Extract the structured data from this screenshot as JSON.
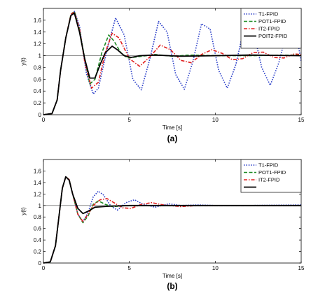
{
  "figure": {
    "captions": [
      "(a)",
      "(b)"
    ]
  },
  "chart_data": [
    {
      "type": "line",
      "caption": "(a)",
      "xlabel": "Time [s]",
      "ylabel": "y(t)",
      "xlim": [
        0,
        15
      ],
      "ylim": [
        0,
        1.8
      ],
      "xticks": [
        "0",
        "5",
        "10",
        "15"
      ],
      "yticks": [
        "0",
        "0.2",
        "0.4",
        "0.6",
        "0.8",
        "1",
        "1.2",
        "1.4",
        "1.6"
      ],
      "reference": 1,
      "grid": false,
      "legend_position": "top-right",
      "series": [
        {
          "name": "T1-FPID",
          "color": "#2b3fc9",
          "dash": "dotted",
          "width": 1.6,
          "x": [
            0,
            0.5,
            0.8,
            1.0,
            1.3,
            1.6,
            1.8,
            2.1,
            2.5,
            2.9,
            3.2,
            3.7,
            4.2,
            4.7,
            5.2,
            5.7,
            6.2,
            6.7,
            7.2,
            7.7,
            8.2,
            8.7,
            9.2,
            9.7,
            10.2,
            10.7,
            11.2,
            11.7,
            12.2,
            12.7,
            13.2,
            13.7,
            14.2,
            14.7,
            15
          ],
          "y": [
            0,
            0.02,
            0.25,
            0.75,
            1.3,
            1.68,
            1.75,
            1.5,
            0.7,
            0.35,
            0.45,
            1.1,
            1.64,
            1.35,
            0.6,
            0.42,
            0.95,
            1.58,
            1.4,
            0.68,
            0.43,
            0.9,
            1.54,
            1.45,
            0.75,
            0.45,
            0.85,
            1.5,
            1.45,
            0.8,
            0.5,
            0.88,
            1.45,
            1.4,
            0.9
          ]
        },
        {
          "name": "POT1-FPID",
          "color": "#1e8a25",
          "dash": "dashed",
          "width": 1.6,
          "x": [
            0,
            0.5,
            0.8,
            1.0,
            1.3,
            1.6,
            1.8,
            2.1,
            2.4,
            2.7,
            3.0,
            3.4,
            3.8,
            4.1,
            4.5,
            4.9,
            5.5,
            6.5,
            7.5,
            8.5,
            10,
            12,
            15
          ],
          "y": [
            0,
            0.02,
            0.25,
            0.75,
            1.3,
            1.7,
            1.75,
            1.45,
            0.95,
            0.52,
            0.6,
            1.05,
            1.35,
            1.25,
            1.05,
            0.96,
            0.98,
            1.02,
            0.99,
            1.01,
            1.0,
            1.0,
            1.01
          ]
        },
        {
          "name": "IT2-FPID",
          "color": "#e02020",
          "dash": "dashdot",
          "width": 1.6,
          "x": [
            0,
            0.5,
            0.8,
            1.0,
            1.3,
            1.6,
            1.8,
            2.1,
            2.4,
            2.8,
            3.2,
            3.6,
            4.0,
            4.4,
            5.0,
            5.6,
            6.2,
            6.8,
            7.4,
            8.0,
            8.6,
            9.2,
            9.8,
            10.4,
            11.0,
            11.6,
            12.2,
            12.8,
            13.4,
            14.0,
            14.6,
            15
          ],
          "y": [
            0,
            0.02,
            0.25,
            0.75,
            1.3,
            1.7,
            1.74,
            1.45,
            0.9,
            0.45,
            0.55,
            1.05,
            1.38,
            1.3,
            0.95,
            0.82,
            0.98,
            1.18,
            1.1,
            0.92,
            0.88,
            1.02,
            1.1,
            1.04,
            0.93,
            0.95,
            1.05,
            1.06,
            0.97,
            0.96,
            1.03,
            1.02
          ]
        },
        {
          "name": "POIT2-FPID",
          "color": "#000000",
          "dash": "solid",
          "width": 1.8,
          "x": [
            0,
            0.5,
            0.8,
            1.0,
            1.3,
            1.6,
            1.8,
            2.1,
            2.4,
            2.7,
            3.0,
            3.3,
            3.6,
            4.0,
            4.3,
            4.7,
            5.1,
            5.6,
            6.5,
            8,
            10,
            12,
            15
          ],
          "y": [
            0,
            0.02,
            0.25,
            0.75,
            1.3,
            1.68,
            1.72,
            1.4,
            0.95,
            0.62,
            0.62,
            0.85,
            1.05,
            1.16,
            1.1,
            1.0,
            0.97,
            1.0,
            1.01,
            0.99,
            1.0,
            1.01,
            1.0
          ]
        }
      ]
    },
    {
      "type": "line",
      "caption": "(b)",
      "xlabel": "Time [s]",
      "ylabel": "y(t)",
      "xlim": [
        0,
        15
      ],
      "ylim": [
        0,
        1.8
      ],
      "xticks": [
        "0",
        "5",
        "10",
        "15"
      ],
      "yticks": [
        "0",
        "0.2",
        "0.4",
        "0.6",
        "0.8",
        "1",
        "1.2",
        "1.4",
        "1.6"
      ],
      "reference": 1,
      "grid": false,
      "legend_position": "top-right",
      "series": [
        {
          "name": "T1-FPID",
          "color": "#2b3fc9",
          "dash": "dotted",
          "width": 1.6,
          "x": [
            0,
            0.4,
            0.7,
            0.9,
            1.1,
            1.3,
            1.5,
            1.7,
            2.0,
            2.3,
            2.6,
            2.9,
            3.2,
            3.5,
            3.9,
            4.3,
            4.8,
            5.3,
            5.8,
            6.5,
            7.3,
            8,
            9,
            10,
            12,
            15
          ],
          "y": [
            0,
            0.02,
            0.3,
            0.8,
            1.3,
            1.5,
            1.45,
            1.2,
            0.85,
            0.72,
            0.88,
            1.15,
            1.25,
            1.18,
            1.0,
            0.92,
            1.05,
            1.1,
            1.02,
            0.97,
            1.03,
            1.0,
            1.01,
            1.0,
            1.0,
            1.01
          ]
        },
        {
          "name": "POT1-FPID",
          "color": "#1e8a25",
          "dash": "dashed",
          "width": 1.6,
          "x": [
            0,
            0.4,
            0.7,
            0.9,
            1.1,
            1.3,
            1.5,
            1.7,
            2.0,
            2.3,
            2.6,
            2.9,
            3.2,
            3.6,
            4.0,
            5,
            6,
            8,
            10,
            15
          ],
          "y": [
            0,
            0.02,
            0.3,
            0.8,
            1.3,
            1.5,
            1.45,
            1.2,
            0.85,
            0.7,
            0.82,
            1.02,
            1.08,
            1.02,
            0.98,
            1.0,
            1.0,
            1.0,
            1.0,
            1.0
          ]
        },
        {
          "name": "IT2-FPID",
          "color": "#e02020",
          "dash": "dashdot",
          "width": 1.6,
          "x": [
            0,
            0.4,
            0.7,
            0.9,
            1.1,
            1.3,
            1.5,
            1.7,
            2.0,
            2.3,
            2.6,
            2.9,
            3.3,
            3.7,
            4.1,
            4.6,
            5.1,
            5.7,
            6.3,
            7,
            8,
            9,
            10,
            12,
            15
          ],
          "y": [
            0,
            0.02,
            0.3,
            0.8,
            1.3,
            1.5,
            1.45,
            1.2,
            0.85,
            0.72,
            0.85,
            1.0,
            1.1,
            1.12,
            1.05,
            0.96,
            0.95,
            1.02,
            1.05,
            1.01,
            0.98,
            1.0,
            1.0,
            1.0,
            1.0
          ]
        },
        {
          "name": "",
          "color": "#000000",
          "dash": "solid",
          "width": 1.8,
          "x": [
            0,
            0.4,
            0.7,
            0.9,
            1.1,
            1.3,
            1.5,
            1.7,
            2.0,
            2.3,
            2.6,
            3.0,
            3.5,
            4,
            5,
            6,
            8,
            10,
            15
          ],
          "y": [
            0,
            0.02,
            0.3,
            0.8,
            1.3,
            1.5,
            1.44,
            1.2,
            0.95,
            0.86,
            0.9,
            0.97,
            0.98,
            0.99,
            1.0,
            1.0,
            1.0,
            1.0,
            1.0
          ]
        }
      ]
    }
  ]
}
